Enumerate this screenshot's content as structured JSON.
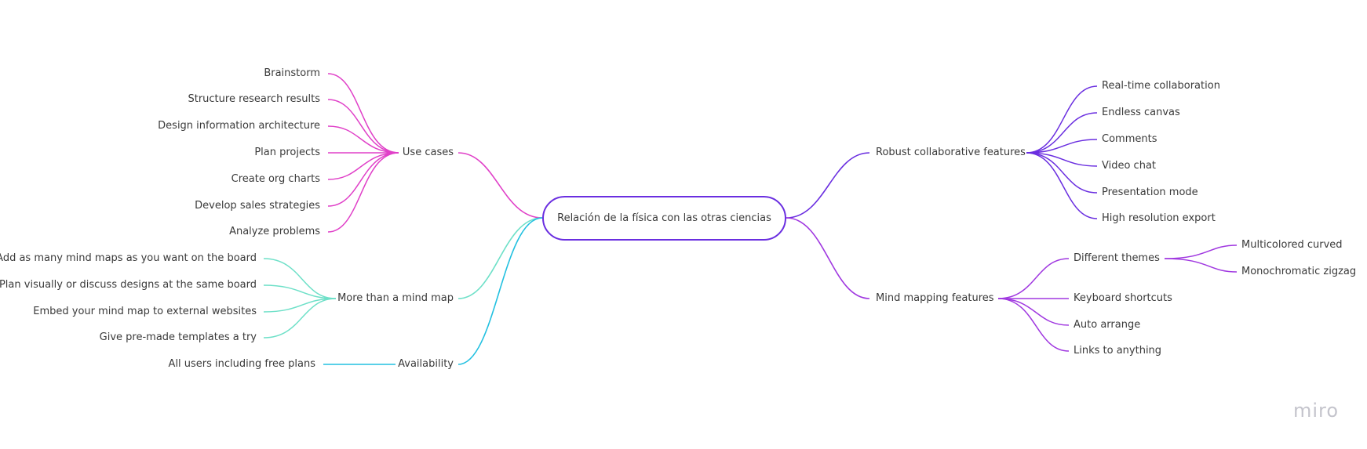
{
  "mindmap": {
    "root": "Relación de la física con las otras ciencias",
    "branches": [
      {
        "label": "Use cases",
        "color": "#e040c8",
        "children": [
          "Brainstorm",
          "Structure research results",
          "Design information architecture",
          "Plan projects",
          "Create org charts",
          "Develop sales strategies",
          "Analyze problems"
        ]
      },
      {
        "label": "More than a mind map",
        "color": "#6ee0c8",
        "children": [
          "Add as many mind maps as you want on the board",
          "Plan visually or discuss designs at the same board",
          "Embed your mind map to external websites",
          "Give pre-made templates a try"
        ]
      },
      {
        "label": "Availability",
        "color": "#22c0e0",
        "children": [
          "All users including free plans"
        ]
      },
      {
        "label": "Robust collaborative features",
        "color": "#6a2ee0",
        "children": [
          "Real-time collaboration",
          "Endless canvas",
          "Comments",
          "Video chat",
          "Presentation mode",
          "High resolution export"
        ]
      },
      {
        "label": "Mind mapping features",
        "color": "#a038e0",
        "children": [
          "Different themes",
          "Keyboard shortcuts",
          "Auto arrange",
          "Links to anything"
        ],
        "subchildren": [
          "Multicolored curved",
          "Monochromatic zigzag"
        ]
      }
    ]
  },
  "watermark": "miro"
}
